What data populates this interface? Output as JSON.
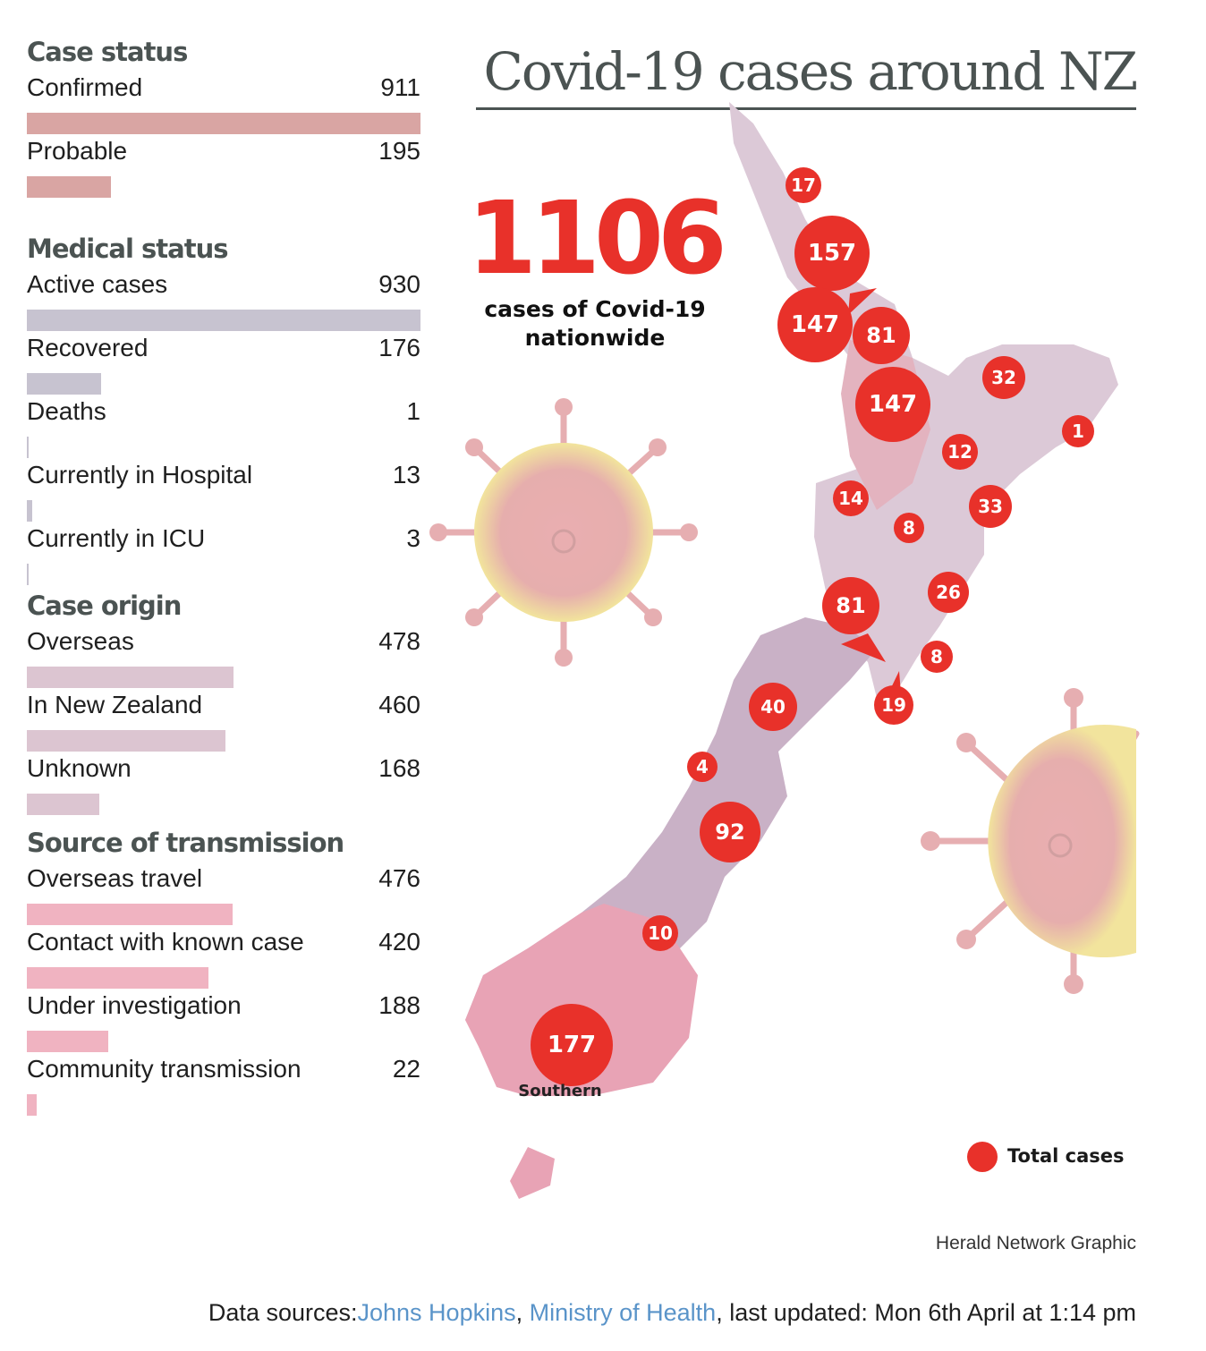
{
  "title": "Covid-19 cases around NZ",
  "headline": {
    "number": "1106",
    "sub_line1": "cases of Covid-19",
    "sub_line2": "nationwide"
  },
  "chart_data": [
    {
      "type": "bar",
      "title": "Case status",
      "color": "#d9a5a3",
      "categories": [
        "Confirmed",
        "Probable"
      ],
      "values": [
        911,
        195
      ],
      "xlim": [
        0,
        911
      ]
    },
    {
      "type": "bar",
      "title": "Medical status",
      "color": "#c7c3d0",
      "categories": [
        "Active cases",
        "Recovered",
        "Deaths",
        "Currently in Hospital",
        "Currently in ICU"
      ],
      "values": [
        930,
        176,
        1,
        13,
        3
      ],
      "xlim": [
        0,
        930
      ]
    },
    {
      "type": "bar",
      "title": "Case origin",
      "color": "#dcc5d1",
      "categories": [
        "Overseas",
        "In New Zealand",
        "Unknown"
      ],
      "values": [
        478,
        460,
        168
      ],
      "xlim": [
        0,
        911
      ]
    },
    {
      "type": "bar",
      "title": "Source of transmission",
      "color": "#f0b3c1",
      "categories": [
        "Overseas travel",
        "Contact with known case",
        "Under investigation",
        "Community transmission"
      ],
      "values": [
        476,
        420,
        188,
        22
      ],
      "xlim": [
        0,
        911
      ]
    }
  ],
  "map": {
    "bubble_color": "#e8312a",
    "region_cases": [
      "17",
      "157",
      "147",
      "81",
      "147",
      "32",
      "1",
      "12",
      "14",
      "8",
      "33",
      "26",
      "81",
      "8",
      "19",
      "40",
      "4",
      "92",
      "10",
      "177"
    ],
    "southern_label": "Southern"
  },
  "legend": {
    "label": "Total cases"
  },
  "credit": "Herald Network Graphic",
  "sources": {
    "prefix": "Data sources:",
    "link1": "Johns Hopkins",
    "sep": ", ",
    "link2": "Ministry of Health",
    "suffix": ", last updated: Mon 6th April at 1:14 pm"
  }
}
